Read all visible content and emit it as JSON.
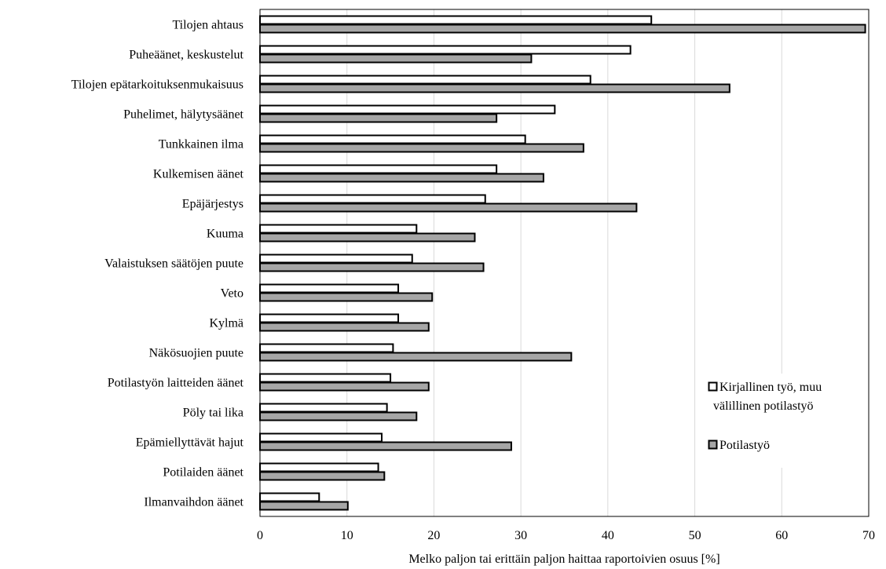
{
  "chart_data": {
    "type": "bar",
    "orientation": "horizontal",
    "categories": [
      "Tilojen ahtaus",
      "Puheäänet, keskustelut",
      "Tilojen epätarkoituksenmukaisuus",
      "Puhelimet, hälytysäänet",
      "Tunkkainen ilma",
      "Kulkemisen äänet",
      "Epäjärjestys",
      "Kuuma",
      "Valaistuksen säätöjen puute",
      "Veto",
      "Kylmä",
      "Näkösuojien puute",
      "Potilastyön laitteiden äänet",
      "Pöly tai lika",
      "Epämiellyttävät hajut",
      "Potilaiden äänet",
      "Ilmanvaihdon äänet"
    ],
    "series": [
      {
        "name": "Kirjallinen työ, muu välillinen potilastyö",
        "color": "#ffffff",
        "values": [
          45.0,
          42.6,
          38.0,
          33.9,
          30.5,
          27.2,
          25.9,
          18.0,
          17.5,
          15.9,
          15.9,
          15.3,
          15.0,
          14.6,
          14.0,
          13.6,
          6.8
        ]
      },
      {
        "name": "Potilastyö",
        "color": "#a6a6a6",
        "values": [
          69.6,
          31.2,
          54.0,
          27.2,
          37.2,
          32.6,
          43.3,
          24.7,
          25.7,
          19.8,
          19.4,
          35.8,
          19.4,
          18.0,
          28.9,
          14.3,
          10.1
        ]
      }
    ],
    "x_ticks": [
      "0",
      "10",
      "20",
      "30",
      "40",
      "50",
      "60",
      "70"
    ],
    "xlim": [
      0,
      70
    ],
    "xlabel": "Melko paljon tai erittäin paljon haittaa raportoivien osuus [%]",
    "ylabel": "",
    "grid": "vertical",
    "legend_position": "bottom-right",
    "legend_lines": [
      [
        "Kirjallinen työ, muu",
        "välillinen potilastyö"
      ],
      [
        "Potilastyö"
      ]
    ]
  }
}
